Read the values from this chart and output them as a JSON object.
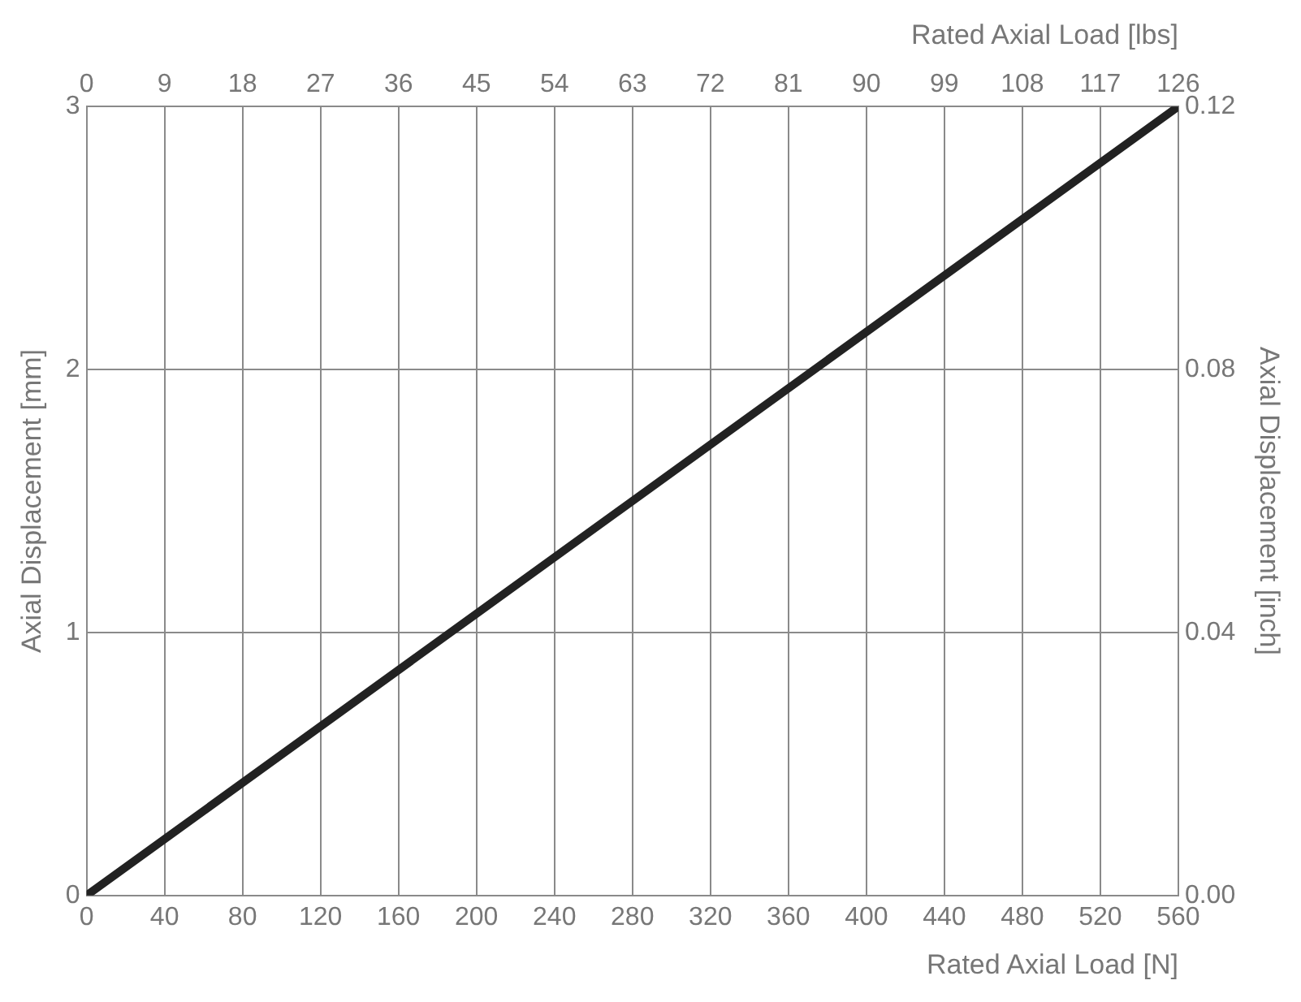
{
  "chart_data": {
    "type": "line",
    "xlabel": "Rated Axial Load [N]",
    "x2label": "Rated Axial Load [lbs]",
    "ylabel": "Axial Displacement [mm]",
    "y2label": "Axial Displacement [inch]",
    "series": [
      {
        "color": "#222222",
        "x": [
          0,
          560
        ],
        "values": [
          0,
          3
        ]
      }
    ],
    "xlim": [
      0,
      560
    ],
    "xticks": [
      0,
      40,
      80,
      120,
      160,
      200,
      240,
      280,
      320,
      360,
      400,
      440,
      480,
      520,
      560
    ],
    "x2lim": [
      0,
      126
    ],
    "x2ticks": [
      0,
      9,
      18,
      27,
      36,
      45,
      54,
      63,
      72,
      81,
      90,
      99,
      108,
      117,
      126
    ],
    "ylim": [
      0,
      3
    ],
    "yticks": [
      0,
      1,
      2,
      3
    ],
    "y2lim": [
      0,
      0.12
    ],
    "y2ticks": [
      {
        "value": 0,
        "label": "0.00"
      },
      0.04,
      0.08,
      0.12
    ],
    "grid": true,
    "marker": "none",
    "line_style": "solid"
  }
}
